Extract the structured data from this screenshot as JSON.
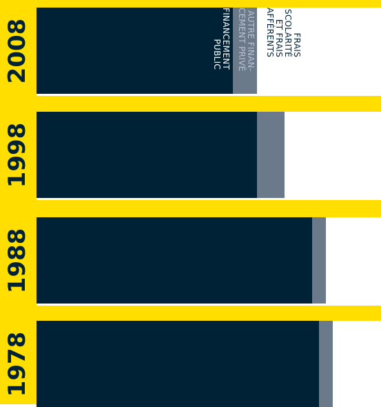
{
  "chart_data": {
    "type": "bar",
    "orientation": "horizontal-stacked",
    "categories": [
      "2008",
      "1998",
      "1988",
      "1978"
    ],
    "series": [
      {
        "name": "FINANCEMENT PUBLIC",
        "values": [
          57,
          64,
          80,
          82
        ],
        "color": "#002236"
      },
      {
        "name": "AUTRE FINANCEMENT PRIVÉ",
        "values": [
          7,
          8,
          4,
          4
        ],
        "color": "#6a7a8a"
      },
      {
        "name": "FRAIS DE SCOLARITÉ ET FRAIS AFFÉRENTS",
        "values": [
          36,
          28,
          16,
          14
        ],
        "color": "#ffffff"
      }
    ],
    "legend_text": {
      "public": [
        "FINANCEMENT",
        "PUBLIC"
      ],
      "other": [
        "AUTRE FINAN-",
        "CEMENT PRIVÉ"
      ],
      "fees": [
        "FRAIS",
        "SCOLARITÉ",
        "ET FRAIS",
        "AFFÉRENTS"
      ]
    },
    "legend_placement": "inside top bar",
    "xlim": [
      0,
      100
    ],
    "grid": false,
    "background": "#ffde00"
  }
}
